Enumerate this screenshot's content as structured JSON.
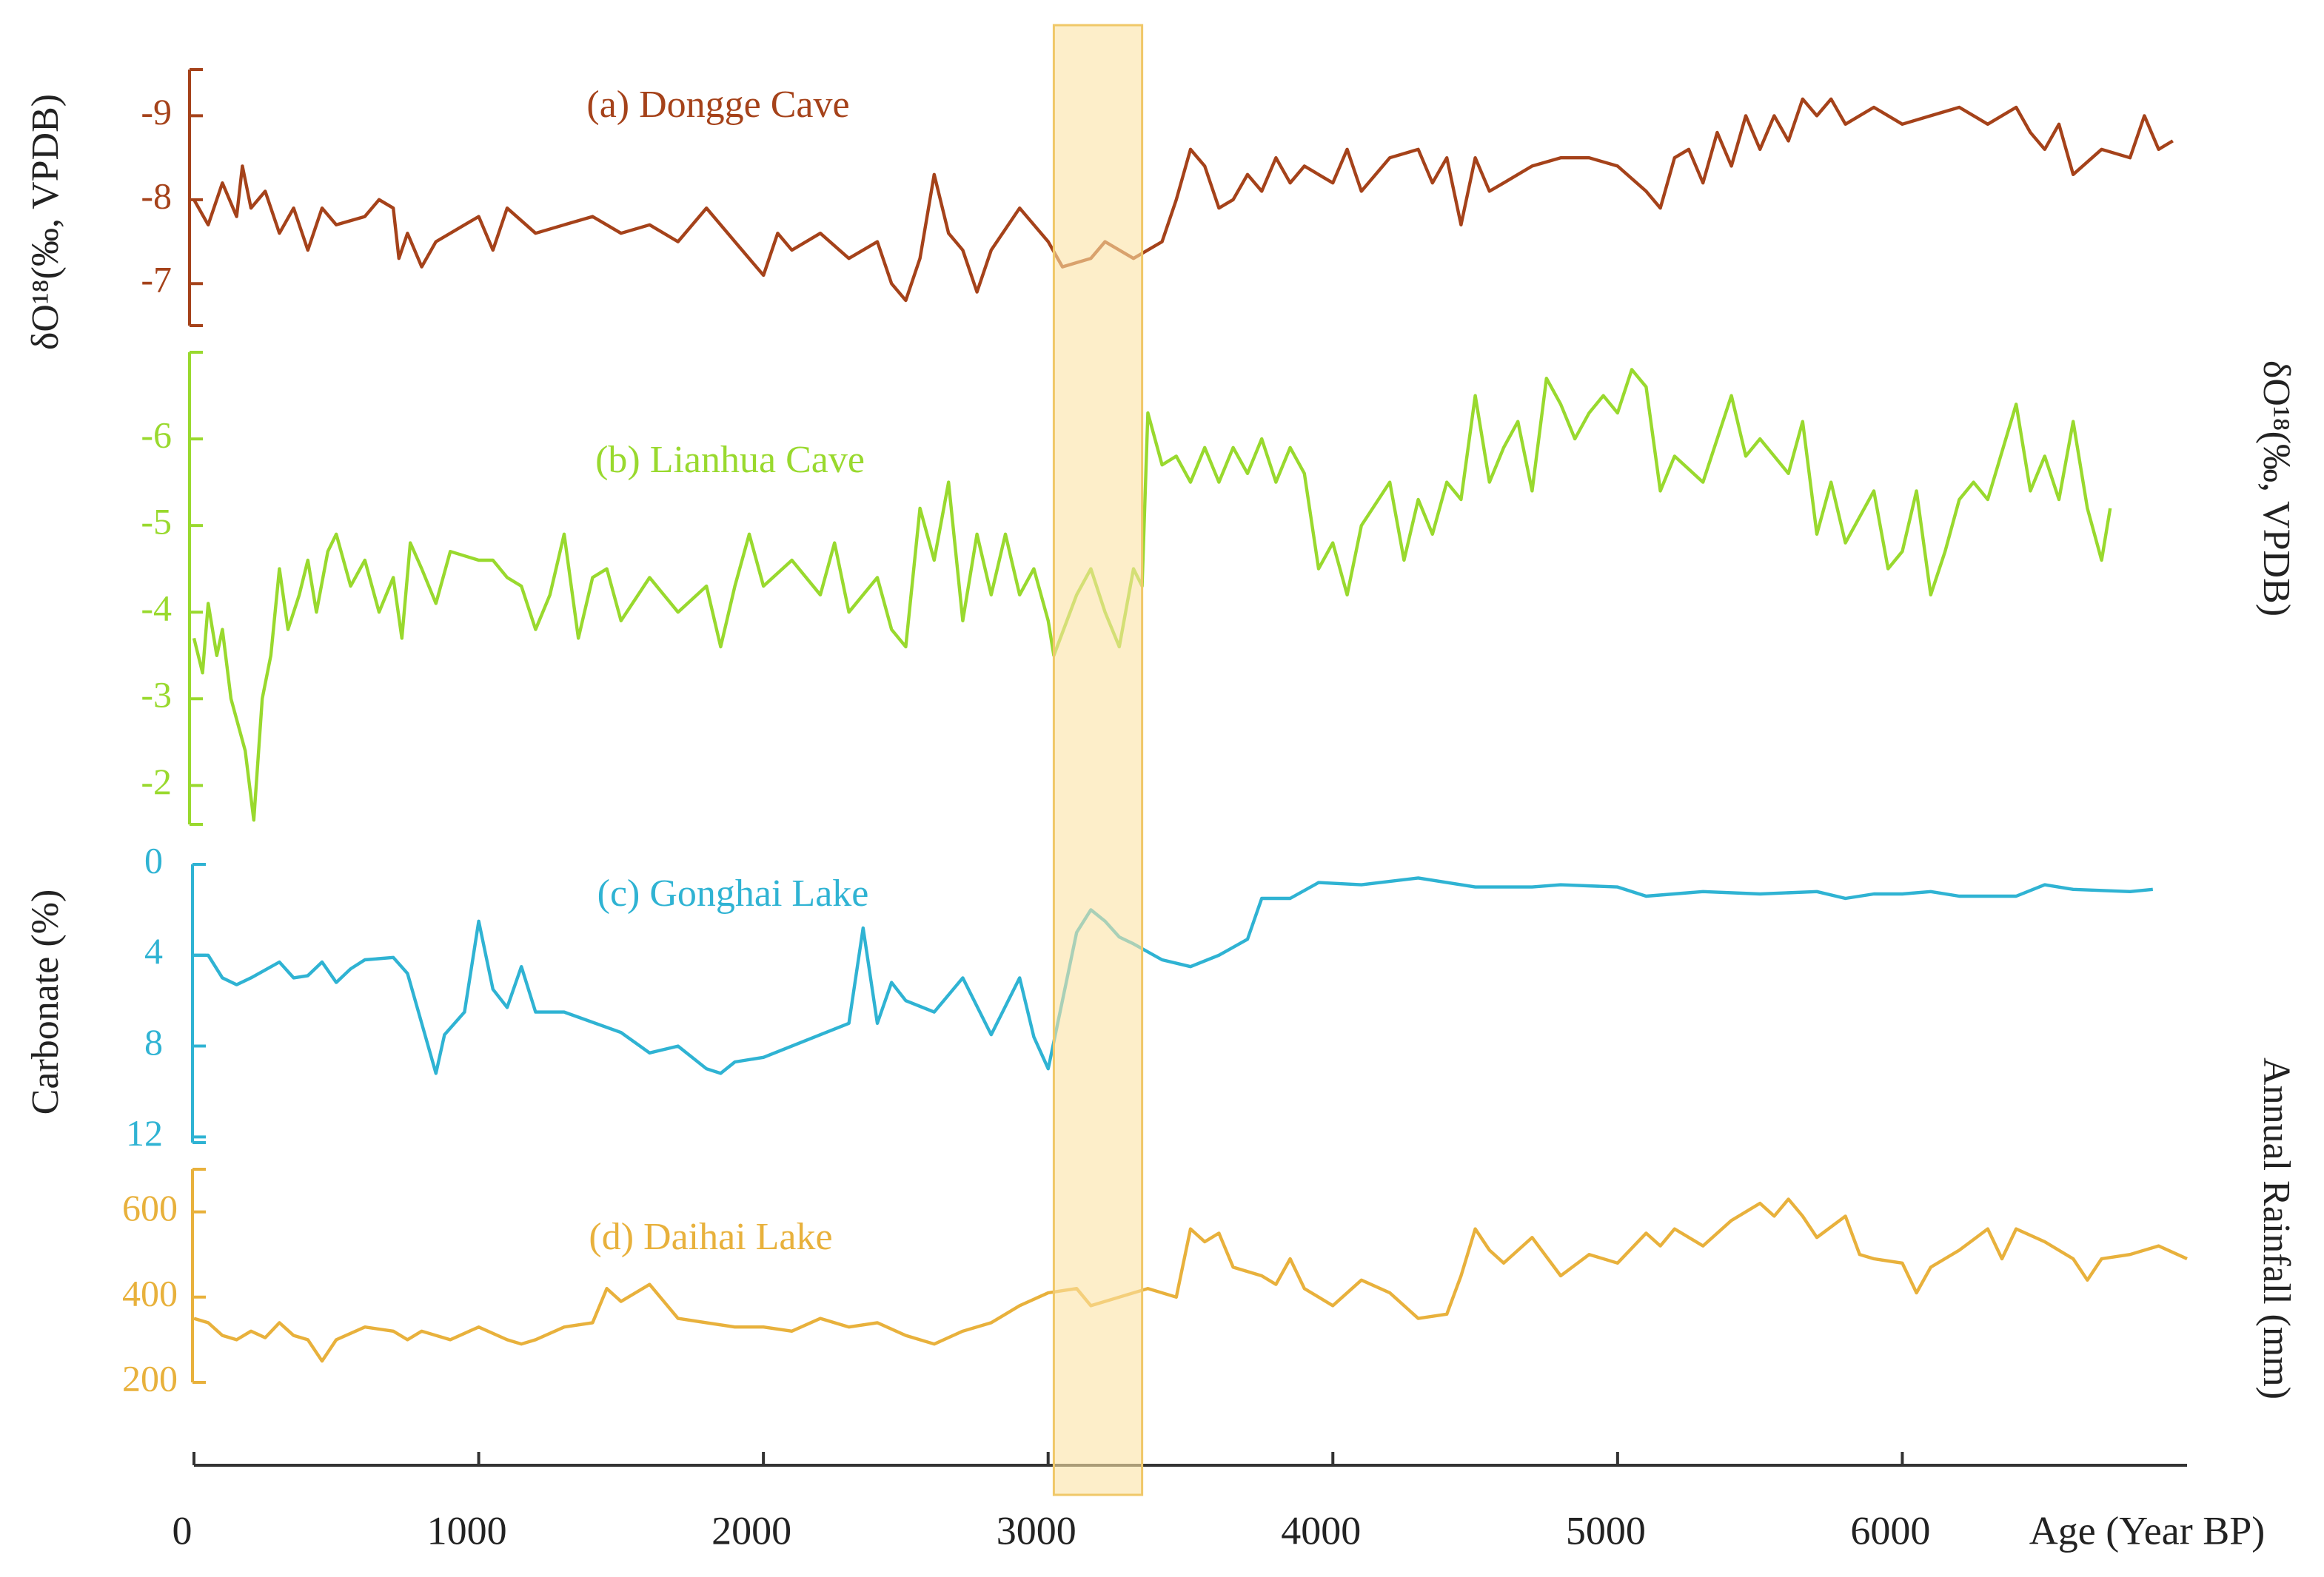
{
  "chart_data": [
    {
      "type": "line",
      "title": "(a) Dongge Cave",
      "ylabel": "δO¹⁸(‰, VPDB)",
      "ylabel_side": "left",
      "color": "#a5421a",
      "xlim": [
        0,
        7000
      ],
      "ylim": [
        -6.5,
        -9.55
      ],
      "yticks": [
        -9,
        -8,
        -7
      ],
      "x": [
        0,
        50,
        100,
        150,
        170,
        200,
        250,
        300,
        350,
        400,
        450,
        500,
        600,
        650,
        700,
        720,
        750,
        800,
        850,
        1000,
        1050,
        1100,
        1200,
        1300,
        1400,
        1500,
        1600,
        1700,
        1800,
        1900,
        2000,
        2050,
        2100,
        2200,
        2300,
        2400,
        2450,
        2500,
        2550,
        2600,
        2650,
        2700,
        2750,
        2800,
        2900,
        3000,
        3050,
        3150,
        3200,
        3300,
        3400,
        3450,
        3500,
        3550,
        3600,
        3650,
        3700,
        3750,
        3800,
        3850,
        3900,
        4000,
        4050,
        4100,
        4200,
        4300,
        4350,
        4400,
        4450,
        4500,
        4550,
        4600,
        4700,
        4800,
        4900,
        5000,
        5100,
        5150,
        5200,
        5250,
        5300,
        5350,
        5400,
        5450,
        5500,
        5550,
        5600,
        5650,
        5700,
        5750,
        5800,
        5900,
        6000,
        6100,
        6200,
        6300,
        6400,
        6450,
        6500,
        6550,
        6600,
        6700,
        6800,
        6850,
        6900,
        6950
      ],
      "values": [
        -8.0,
        -7.7,
        -8.2,
        -7.8,
        -8.4,
        -7.9,
        -8.1,
        -7.6,
        -7.9,
        -7.4,
        -7.9,
        -7.7,
        -7.8,
        -8.0,
        -7.9,
        -7.3,
        -7.6,
        -7.2,
        -7.5,
        -7.8,
        -7.4,
        -7.9,
        -7.6,
        -7.7,
        -7.8,
        -7.6,
        -7.7,
        -7.5,
        -7.9,
        -7.5,
        -7.1,
        -7.6,
        -7.4,
        -7.6,
        -7.3,
        -7.5,
        -7.0,
        -6.8,
        -7.3,
        -8.3,
        -7.6,
        -7.4,
        -6.9,
        -7.4,
        -7.9,
        -7.5,
        -7.2,
        -7.3,
        -7.5,
        -7.3,
        -7.5,
        -8.0,
        -8.6,
        -8.4,
        -7.9,
        -8.0,
        -8.3,
        -8.1,
        -8.5,
        -8.2,
        -8.4,
        -8.2,
        -8.6,
        -8.1,
        -8.5,
        -8.6,
        -8.2,
        -8.5,
        -7.7,
        -8.5,
        -8.1,
        -8.2,
        -8.4,
        -8.5,
        -8.5,
        -8.4,
        -8.1,
        -7.9,
        -8.5,
        -8.6,
        -8.2,
        -8.8,
        -8.4,
        -9.0,
        -8.6,
        -9.0,
        -8.7,
        -9.2,
        -9.0,
        -9.2,
        -8.9,
        -9.1,
        -8.9,
        -9.0,
        -9.1,
        -8.9,
        -9.1,
        -8.8,
        -8.6,
        -8.9,
        -8.3,
        -8.6,
        -8.5,
        -9.0,
        -8.6,
        -8.7
      ]
    },
    {
      "type": "line",
      "title": "(b) Lianhua Cave",
      "ylabel": "δO¹⁸(‰, VPDB)",
      "ylabel_side": "right",
      "color": "#99d92e",
      "xlim": [
        0,
        7000
      ],
      "ylim": [
        -1.55,
        -7
      ],
      "yticks": [
        -6,
        -5,
        -4,
        -3,
        -2
      ],
      "x": [
        0,
        30,
        50,
        80,
        100,
        130,
        180,
        210,
        240,
        270,
        300,
        330,
        370,
        400,
        430,
        470,
        500,
        550,
        600,
        650,
        700,
        730,
        760,
        800,
        850,
        900,
        1000,
        1050,
        1100,
        1150,
        1200,
        1250,
        1300,
        1350,
        1400,
        1450,
        1500,
        1600,
        1700,
        1800,
        1850,
        1900,
        1950,
        2000,
        2100,
        2200,
        2250,
        2300,
        2400,
        2450,
        2500,
        2550,
        2600,
        2650,
        2700,
        2750,
        2800,
        2850,
        2900,
        2950,
        3000,
        3020,
        3100,
        3150,
        3200,
        3250,
        3300,
        3330,
        3350,
        3400,
        3450,
        3500,
        3550,
        3600,
        3650,
        3700,
        3750,
        3800,
        3850,
        3900,
        3950,
        4000,
        4050,
        4100,
        4200,
        4250,
        4300,
        4350,
        4400,
        4450,
        4500,
        4550,
        4600,
        4650,
        4700,
        4750,
        4800,
        4850,
        4900,
        4950,
        5000,
        5050,
        5100,
        5150,
        5200,
        5300,
        5400,
        5450,
        5500,
        5550,
        5600,
        5650,
        5700,
        5750,
        5800,
        5900,
        5950,
        6000,
        6050,
        6100,
        6150,
        6200,
        6250,
        6300,
        6400,
        6450,
        6500,
        6550,
        6600,
        6650,
        6700,
        6730
      ],
      "values": [
        -3.7,
        -3.3,
        -4.1,
        -3.5,
        -3.8,
        -3.0,
        -2.4,
        -1.6,
        -3.0,
        -3.5,
        -4.5,
        -3.8,
        -4.2,
        -4.6,
        -4.0,
        -4.7,
        -4.9,
        -4.3,
        -4.6,
        -4.0,
        -4.4,
        -3.7,
        -4.8,
        -4.5,
        -4.1,
        -4.7,
        -4.6,
        -4.6,
        -4.4,
        -4.3,
        -3.8,
        -4.2,
        -4.9,
        -3.7,
        -4.4,
        -4.5,
        -3.9,
        -4.4,
        -4.0,
        -4.3,
        -3.6,
        -4.3,
        -4.9,
        -4.3,
        -4.6,
        -4.2,
        -4.8,
        -4.0,
        -4.4,
        -3.8,
        -3.6,
        -5.2,
        -4.6,
        -5.5,
        -3.9,
        -4.9,
        -4.2,
        -4.9,
        -4.2,
        -4.5,
        -3.9,
        -3.5,
        -4.2,
        -4.5,
        -4.0,
        -3.6,
        -4.5,
        -4.3,
        -6.3,
        -5.7,
        -5.8,
        -5.5,
        -5.9,
        -5.5,
        -5.9,
        -5.6,
        -6.0,
        -5.5,
        -5.9,
        -5.6,
        -4.5,
        -4.8,
        -4.2,
        -5.0,
        -5.5,
        -4.6,
        -5.3,
        -4.9,
        -5.5,
        -5.3,
        -6.5,
        -5.5,
        -5.9,
        -6.2,
        -5.4,
        -6.7,
        -6.4,
        -6.0,
        -6.3,
        -6.5,
        -6.3,
        -6.8,
        -6.6,
        -5.4,
        -5.8,
        -5.5,
        -6.5,
        -5.8,
        -6.0,
        -5.8,
        -5.6,
        -6.2,
        -4.9,
        -5.5,
        -4.8,
        -5.4,
        -4.5,
        -4.7,
        -5.4,
        -4.2,
        -4.7,
        -5.3,
        -5.5,
        -5.3,
        -6.4,
        -5.4,
        -5.8,
        -5.3,
        -6.2,
        -5.2,
        -4.6,
        -5.2
      ]
    },
    {
      "type": "line",
      "title": "(c) Gonghai Lake",
      "ylabel": "Carbonate (%)",
      "ylabel_side": "left",
      "color": "#2fb3d3",
      "xlim": [
        0,
        7000
      ],
      "ylim": [
        12.25,
        0
      ],
      "yticks": [
        0,
        4,
        8,
        12
      ],
      "x": [
        0,
        50,
        100,
        150,
        200,
        300,
        350,
        400,
        450,
        500,
        550,
        600,
        700,
        750,
        800,
        850,
        880,
        950,
        1000,
        1050,
        1100,
        1150,
        1200,
        1300,
        1500,
        1600,
        1700,
        1800,
        1850,
        1900,
        2000,
        2200,
        2300,
        2350,
        2400,
        2450,
        2500,
        2600,
        2700,
        2800,
        2900,
        2950,
        3000,
        3050,
        3100,
        3150,
        3200,
        3250,
        3300,
        3400,
        3500,
        3600,
        3700,
        3750,
        3850,
        3950,
        4100,
        4300,
        4500,
        4700,
        4800,
        5000,
        5100,
        5300,
        5500,
        5700,
        5800,
        5900,
        6000,
        6100,
        6200,
        6400,
        6500,
        6600,
        6800,
        6880
      ],
      "values": [
        4,
        4,
        5,
        5.3,
        5,
        4.3,
        5,
        4.9,
        4.3,
        5.2,
        4.6,
        4.2,
        4.1,
        4.8,
        7,
        9.2,
        7.5,
        6.5,
        2.5,
        5.5,
        6.3,
        4.5,
        6.5,
        6.5,
        7.4,
        8.3,
        8,
        9,
        9.2,
        8.7,
        8.5,
        7.5,
        7,
        2.8,
        7,
        5.2,
        6,
        6.5,
        5,
        7.5,
        5,
        7.6,
        9,
        6,
        3,
        2,
        2.5,
        3.2,
        3.5,
        4.2,
        4.5,
        4,
        3.3,
        1.5,
        1.5,
        0.8,
        0.9,
        0.6,
        1,
        1,
        0.9,
        1,
        1.4,
        1.2,
        1.3,
        1.2,
        1.5,
        1.3,
        1.3,
        1.2,
        1.4,
        1.4,
        0.9,
        1.1,
        1.2,
        1.1
      ]
    },
    {
      "type": "line",
      "title": "(d) Daihai Lake",
      "ylabel": "Annual Rainfall (mm)",
      "ylabel_side": "right",
      "color": "#e8b13c",
      "xlim": [
        0,
        7000
      ],
      "ylim": [
        200,
        700
      ],
      "yticks": [
        600,
        400,
        200
      ],
      "xlabel": "Age (Year BP)",
      "xticks": [
        0,
        1000,
        2000,
        3000,
        4000,
        5000,
        6000
      ],
      "x": [
        0,
        50,
        100,
        150,
        200,
        250,
        300,
        350,
        400,
        450,
        500,
        600,
        700,
        750,
        800,
        900,
        1000,
        1100,
        1150,
        1200,
        1300,
        1400,
        1450,
        1500,
        1600,
        1700,
        1800,
        1900,
        2000,
        2100,
        2200,
        2300,
        2400,
        2500,
        2600,
        2700,
        2800,
        2900,
        3000,
        3100,
        3150,
        3250,
        3350,
        3450,
        3500,
        3550,
        3600,
        3650,
        3750,
        3800,
        3850,
        3900,
        4000,
        4100,
        4200,
        4300,
        4400,
        4450,
        4500,
        4550,
        4600,
        4700,
        4800,
        4900,
        5000,
        5100,
        5150,
        5200,
        5300,
        5400,
        5500,
        5550,
        5600,
        5650,
        5700,
        5800,
        5850,
        5900,
        6000,
        6050,
        6100,
        6200,
        6300,
        6350,
        6400,
        6500,
        6600,
        6650,
        6700,
        6800,
        6900,
        7000
      ],
      "values": [
        350,
        340,
        310,
        300,
        320,
        305,
        340,
        310,
        300,
        250,
        300,
        330,
        320,
        300,
        320,
        300,
        330,
        300,
        290,
        300,
        330,
        340,
        420,
        390,
        430,
        350,
        340,
        330,
        330,
        320,
        350,
        330,
        340,
        310,
        290,
        320,
        340,
        380,
        410,
        420,
        380,
        400,
        420,
        400,
        560,
        530,
        550,
        470,
        450,
        430,
        490,
        420,
        380,
        440,
        410,
        350,
        360,
        450,
        560,
        510,
        480,
        540,
        450,
        500,
        480,
        550,
        520,
        560,
        520,
        580,
        620,
        590,
        630,
        590,
        540,
        590,
        500,
        490,
        480,
        410,
        470,
        510,
        560,
        490,
        560,
        530,
        490,
        440,
        490,
        500,
        520,
        490
      ]
    }
  ],
  "highlight": {
    "x": [
      3020,
      3330
    ],
    "color": "#fbe3a5"
  }
}
